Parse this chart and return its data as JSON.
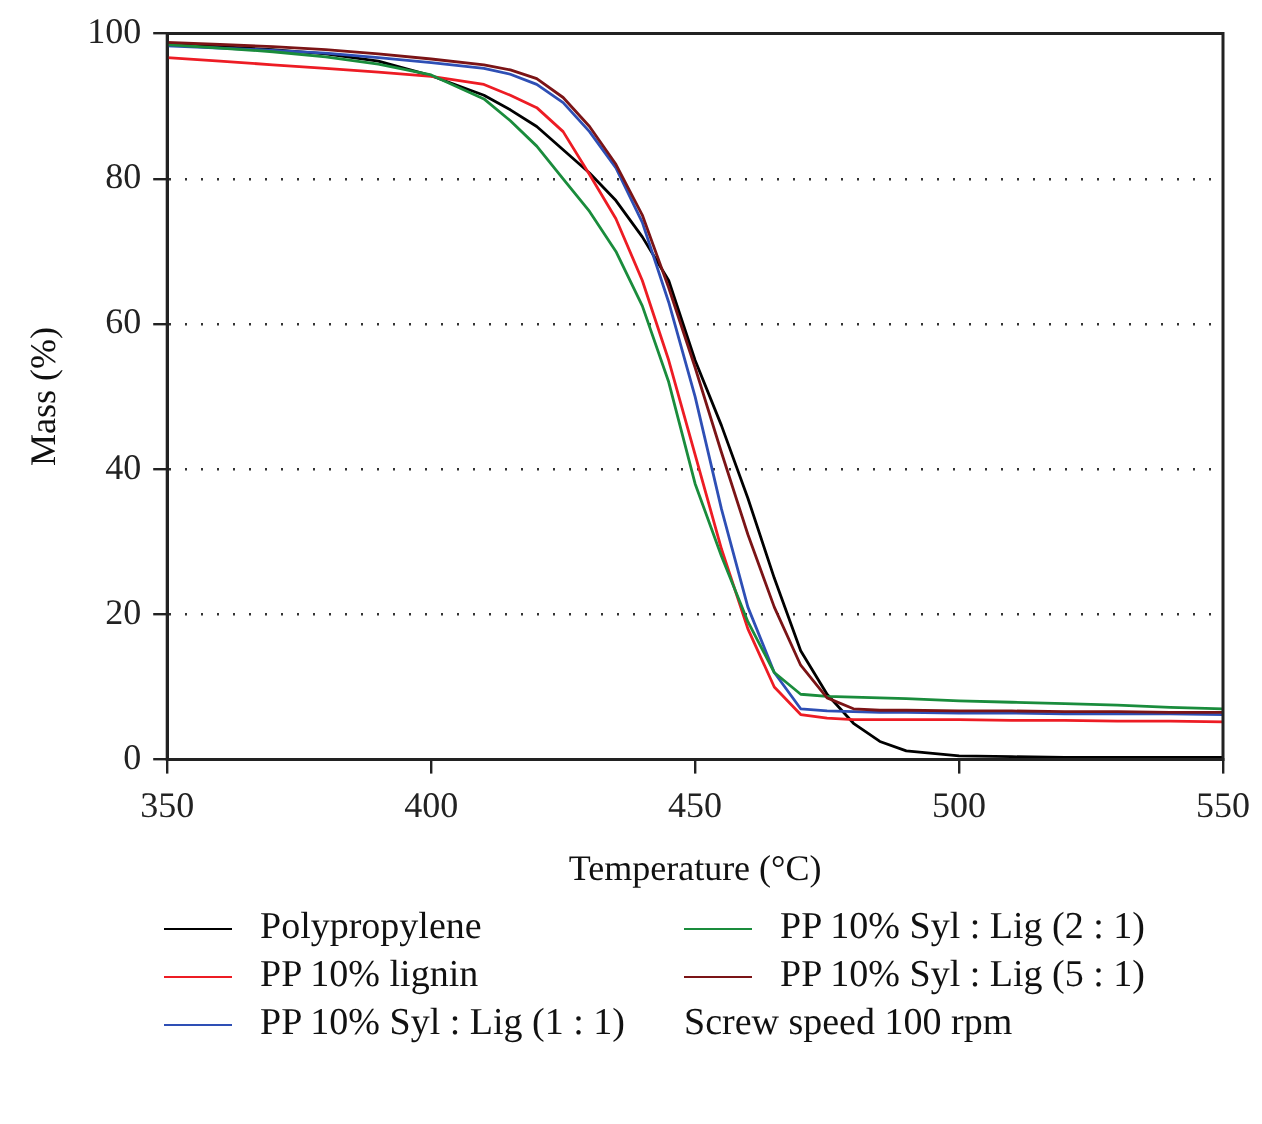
{
  "chart_data": {
    "type": "line",
    "xlabel": "Temperature (°C)",
    "ylabel": "Mass (%)",
    "x": [
      350,
      360,
      370,
      380,
      390,
      400,
      410,
      415,
      420,
      425,
      430,
      435,
      440,
      445,
      450,
      455,
      460,
      465,
      470,
      475,
      480,
      485,
      490,
      500,
      510,
      520,
      530,
      540,
      550
    ],
    "series": [
      {
        "name": "Polypropylene",
        "color": "#000000",
        "values": [
          98.5,
          98.2,
          97.8,
          97.2,
          96.2,
          94.2,
          91.5,
          89.5,
          87.2,
          84,
          80.8,
          77,
          72,
          66,
          55,
          46,
          36,
          25,
          15,
          9,
          5,
          2.5,
          1.2,
          0.5,
          0.4,
          0.3,
          0.3,
          0.3,
          0.3
        ]
      },
      {
        "name": "PP 10% lignin",
        "color": "#ed1c24",
        "values": [
          96.7,
          96.2,
          95.7,
          95.2,
          94.7,
          94.1,
          93,
          91.5,
          89.8,
          86.5,
          80.6,
          74.5,
          66,
          55,
          42,
          29,
          18,
          10,
          6.2,
          5.7,
          5.5,
          5.5,
          5.5,
          5.5,
          5.4,
          5.4,
          5.3,
          5.3,
          5.2
        ]
      },
      {
        "name": "PP 10% Syl : Lig (1 : 1)",
        "color": "#2e4fb5",
        "values": [
          98.3,
          98,
          97.7,
          97.3,
          96.7,
          96,
          95.2,
          94.4,
          93,
          90.5,
          86.5,
          81.5,
          74,
          63,
          50,
          34.5,
          21,
          12,
          7,
          6.7,
          6.6,
          6.5,
          6.5,
          6.4,
          6.4,
          6.3,
          6.3,
          6.3,
          6.2
        ]
      },
      {
        "name": "PP 10% Syl : Lig (2 : 1)",
        "color": "#1a8c3c",
        "values": [
          98.5,
          98,
          97.5,
          96.8,
          95.8,
          94.3,
          91,
          88,
          84.5,
          80,
          75.5,
          70,
          62.5,
          52,
          38,
          28,
          19,
          12,
          9,
          8.7,
          8.6,
          8.5,
          8.4,
          8.1,
          7.9,
          7.7,
          7.5,
          7.2,
          7
        ]
      },
      {
        "name": "PP 10% Syl : Lig (5 : 1)",
        "color": "#7b1416",
        "values": [
          98.8,
          98.5,
          98.2,
          97.8,
          97.2,
          96.5,
          95.7,
          95,
          93.8,
          91.2,
          87.2,
          82,
          75,
          65,
          54,
          42.3,
          31,
          21,
          13,
          8.5,
          7,
          6.8,
          6.8,
          6.7,
          6.7,
          6.6,
          6.6,
          6.5,
          6.5
        ]
      }
    ],
    "xlim": [
      350,
      550
    ],
    "xticks": [
      350,
      400,
      450,
      500,
      550
    ],
    "ylim": [
      0,
      100
    ],
    "yticks": [
      0,
      20,
      40,
      60,
      80,
      100
    ],
    "grid": "y",
    "legend": "bottom",
    "marker": "none",
    "line_style": "solid",
    "annotations": [
      "Screw speed 100 rpm"
    ]
  }
}
